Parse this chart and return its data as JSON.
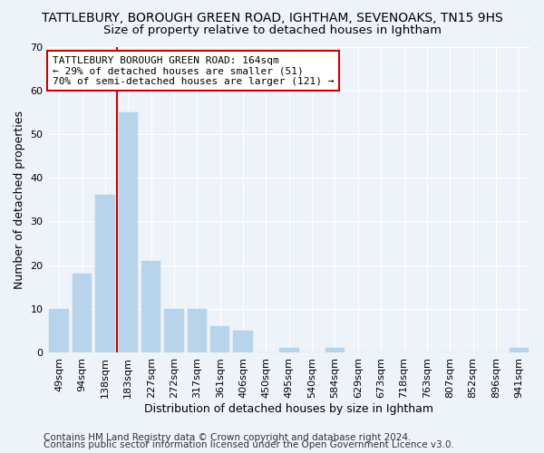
{
  "title": "TATTLEBURY, BOROUGH GREEN ROAD, IGHTHAM, SEVENOAKS, TN15 9HS",
  "subtitle": "Size of property relative to detached houses in Ightham",
  "xlabel": "Distribution of detached houses by size in Ightham",
  "ylabel": "Number of detached properties",
  "bar_color": "#b8d4ea",
  "bar_edge_color": "#b8d4ea",
  "categories": [
    "49sqm",
    "94sqm",
    "138sqm",
    "183sqm",
    "227sqm",
    "272sqm",
    "317sqm",
    "361sqm",
    "406sqm",
    "450sqm",
    "495sqm",
    "540sqm",
    "584sqm",
    "629sqm",
    "673sqm",
    "718sqm",
    "763sqm",
    "807sqm",
    "852sqm",
    "896sqm",
    "941sqm"
  ],
  "values": [
    10,
    18,
    36,
    55,
    21,
    10,
    10,
    6,
    5,
    0,
    1,
    0,
    1,
    0,
    0,
    0,
    0,
    0,
    0,
    0,
    1
  ],
  "ylim": [
    0,
    70
  ],
  "yticks": [
    0,
    10,
    20,
    30,
    40,
    50,
    60,
    70
  ],
  "marker_index": 3,
  "marker_color": "#cc0000",
  "ann_line1": "TATTLEBURY BOROUGH GREEN ROAD: 164sqm",
  "ann_line2": "← 29% of detached houses are smaller (51)",
  "ann_line3": "70% of semi-detached houses are larger (121) →",
  "footer1": "Contains HM Land Registry data © Crown copyright and database right 2024.",
  "footer2": "Contains public sector information licensed under the Open Government Licence v3.0.",
  "background_color": "#eef2f9",
  "grid_color": "#ffffff",
  "title_fontsize": 10,
  "subtitle_fontsize": 9.5,
  "axis_label_fontsize": 9,
  "tick_fontsize": 8,
  "annotation_fontsize": 8,
  "footer_fontsize": 7.5
}
